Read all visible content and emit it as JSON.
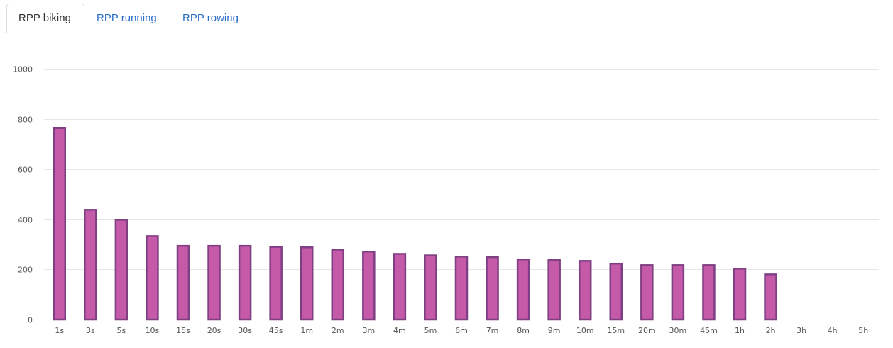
{
  "tabs": [
    {
      "label": "RPP biking",
      "active": true
    },
    {
      "label": "RPP running",
      "active": false
    },
    {
      "label": "RPP rowing",
      "active": false
    }
  ],
  "colors": {
    "bar_fill": "#c45aa8",
    "bar_stroke": "#7f3f83",
    "grid": "#e6e6e6",
    "tab_link": "#2a6ec7"
  },
  "chart_data": {
    "type": "bar",
    "categories": [
      "1s",
      "3s",
      "5s",
      "10s",
      "15s",
      "20s",
      "30s",
      "45s",
      "1m",
      "2m",
      "3m",
      "4m",
      "5m",
      "6m",
      "7m",
      "8m",
      "9m",
      "10m",
      "15m",
      "20m",
      "30m",
      "45m",
      "1h",
      "2h",
      "3h",
      "4h",
      "5h"
    ],
    "values": [
      767,
      441,
      401,
      336,
      297,
      297,
      297,
      293,
      291,
      282,
      274,
      265,
      259,
      254,
      252,
      243,
      240,
      237,
      226,
      220,
      220,
      220,
      206,
      183,
      null,
      null,
      null
    ],
    "ylim": [
      0,
      1000
    ],
    "yticks": [
      0,
      200,
      400,
      600,
      800,
      1000
    ],
    "grid": true,
    "title": "",
    "xlabel": "",
    "ylabel": ""
  }
}
